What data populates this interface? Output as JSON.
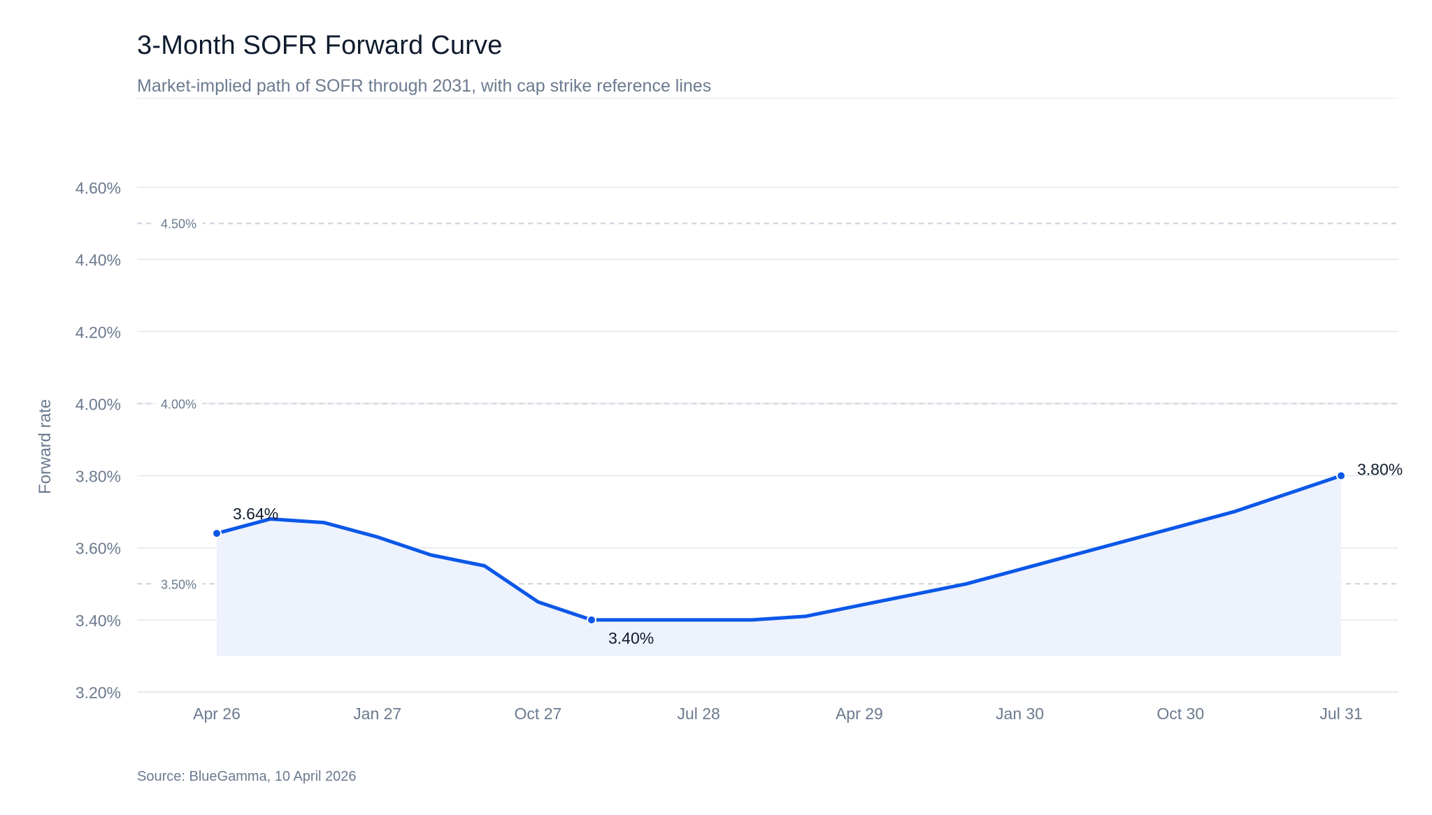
{
  "header": {
    "title": "3-Month SOFR Forward Curve",
    "subtitle": "Market-implied path of SOFR through 2031, with cap strike reference lines"
  },
  "footer": {
    "source": "Source: BlueGamma, 10 April 2026"
  },
  "colors": {
    "line": "#0b57e8",
    "fill": "#eef2fd",
    "grid": "#e3e7ed",
    "reference": "#c9d1dc",
    "axis_text": "#6b7a8f"
  },
  "chart_data": {
    "type": "line",
    "ylabel": "Forward rate",
    "ylim": [
      3.2,
      4.6
    ],
    "yticks": [
      "3.20%",
      "3.40%",
      "3.60%",
      "3.80%",
      "4.00%",
      "4.20%",
      "4.40%",
      "4.60%"
    ],
    "ytick_values": [
      3.2,
      3.4,
      3.6,
      3.8,
      4.0,
      4.2,
      4.4,
      4.6
    ],
    "xlim": [
      "2026-04",
      "2031-07"
    ],
    "xticks": [
      {
        "label": "Apr 26",
        "date": "2026-04"
      },
      {
        "label": "Jan 27",
        "date": "2027-01"
      },
      {
        "label": "Oct 27",
        "date": "2027-10"
      },
      {
        "label": "Jul 28",
        "date": "2028-07"
      },
      {
        "label": "Apr 29",
        "date": "2029-04"
      },
      {
        "label": "Jan 30",
        "date": "2030-01"
      },
      {
        "label": "Oct 30",
        "date": "2030-10"
      },
      {
        "label": "Jul 31",
        "date": "2031-07"
      }
    ],
    "grid": true,
    "series": [
      {
        "points": [
          {
            "x": "2026-04",
            "y": 3.64
          },
          {
            "x": "2026-07",
            "y": 3.68
          },
          {
            "x": "2026-10",
            "y": 3.67
          },
          {
            "x": "2027-01",
            "y": 3.63
          },
          {
            "x": "2027-04",
            "y": 3.58
          },
          {
            "x": "2027-07",
            "y": 3.55
          },
          {
            "x": "2027-10",
            "y": 3.45
          },
          {
            "x": "2028-01",
            "y": 3.4
          },
          {
            "x": "2028-04",
            "y": 3.4
          },
          {
            "x": "2028-07",
            "y": 3.4
          },
          {
            "x": "2028-10",
            "y": 3.4
          },
          {
            "x": "2029-01",
            "y": 3.41
          },
          {
            "x": "2029-04",
            "y": 3.44
          },
          {
            "x": "2029-07",
            "y": 3.47
          },
          {
            "x": "2029-10",
            "y": 3.5
          },
          {
            "x": "2030-01",
            "y": 3.54
          },
          {
            "x": "2030-04",
            "y": 3.58
          },
          {
            "x": "2030-07",
            "y": 3.62
          },
          {
            "x": "2030-10",
            "y": 3.66
          },
          {
            "x": "2031-01",
            "y": 3.7
          },
          {
            "x": "2031-04",
            "y": 3.75
          },
          {
            "x": "2031-07",
            "y": 3.8
          }
        ]
      }
    ],
    "area_floor": 3.3,
    "reference_lines": [
      {
        "value": 4.5,
        "label": "4.50%"
      },
      {
        "value": 4.0,
        "label": "4.00%"
      },
      {
        "value": 3.5,
        "label": "3.50%"
      }
    ],
    "annotations": [
      {
        "x": "2026-04",
        "y": 3.64,
        "label": "3.64%",
        "placement": "above-right"
      },
      {
        "x": "2028-01",
        "y": 3.4,
        "label": "3.40%",
        "placement": "below-right"
      },
      {
        "x": "2031-07",
        "y": 3.8,
        "label": "3.80%",
        "placement": "right"
      }
    ]
  }
}
